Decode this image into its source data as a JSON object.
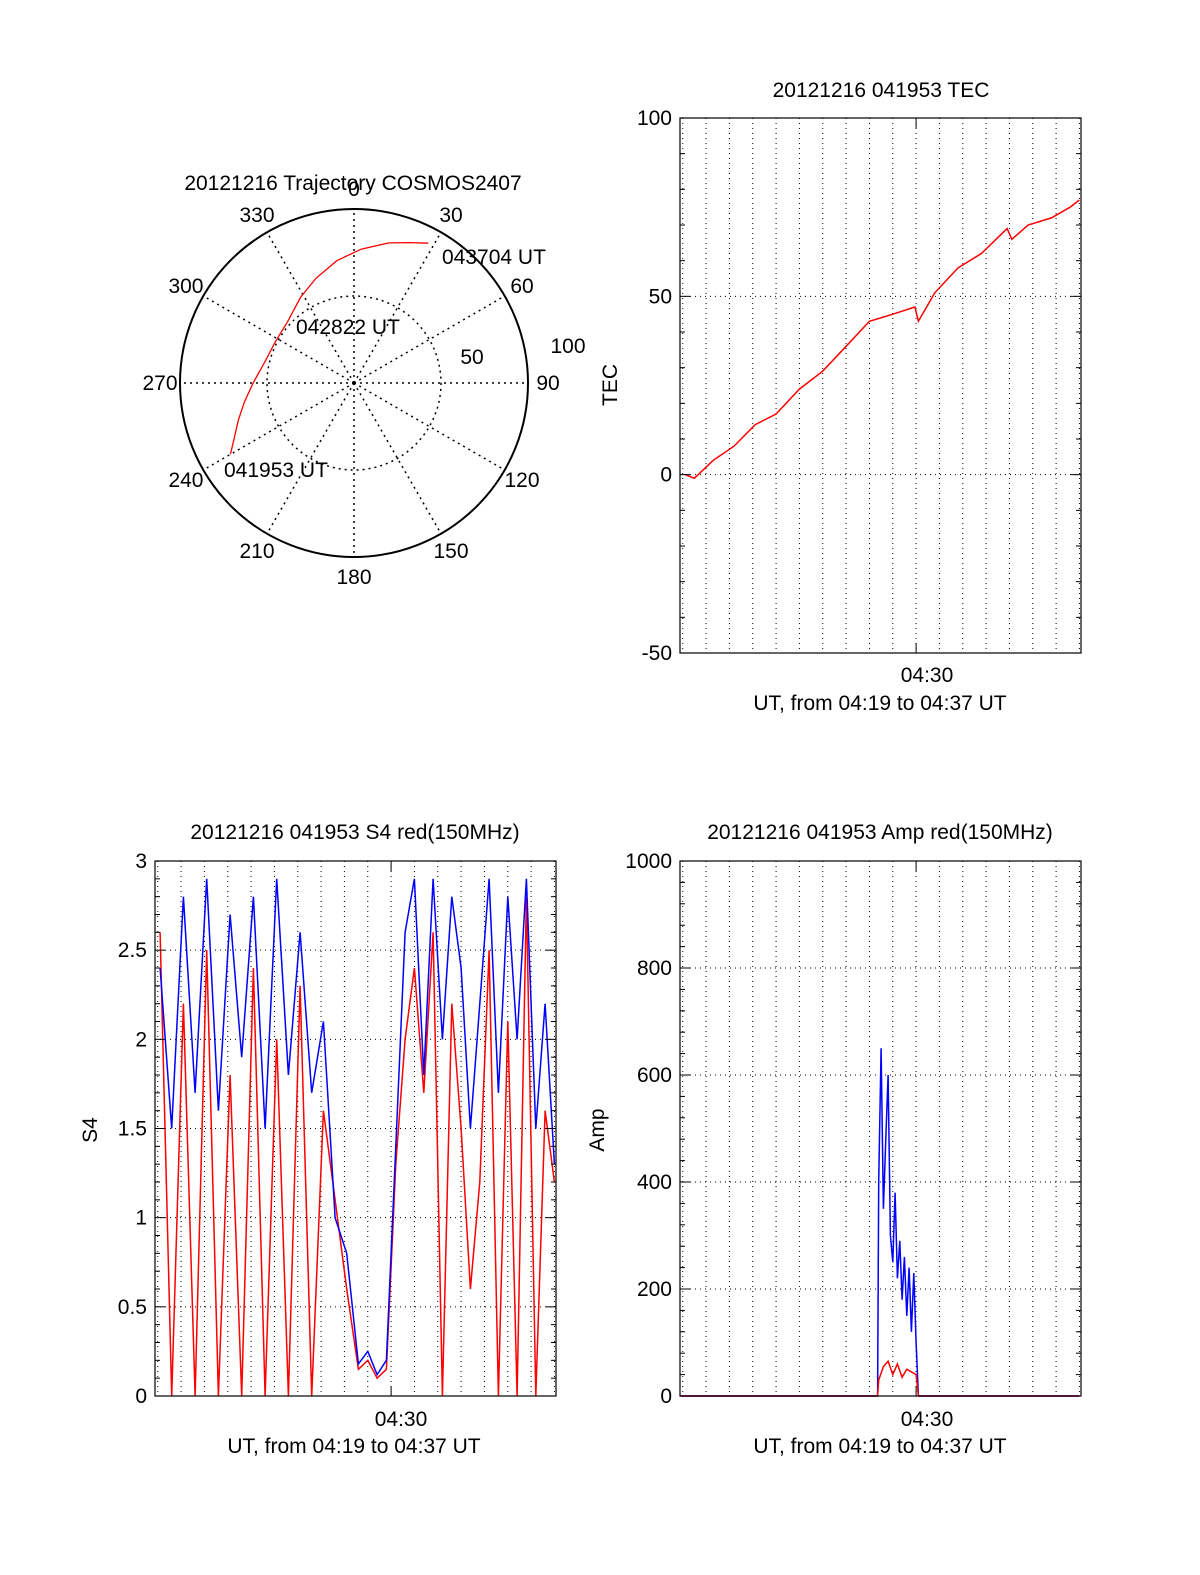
{
  "colors": {
    "background": "#ffffff",
    "axis": "#000000",
    "grid": "#000000",
    "red": "#ff0000",
    "blue": "#0000ff"
  },
  "chart_data": [
    {
      "id": "trajectory",
      "type": "polar",
      "title": "20121216 Trajectory COSMOS2407",
      "azimuth_labels": [
        "0",
        "30",
        "60",
        "90",
        "120",
        "150",
        "180",
        "210",
        "240",
        "270",
        "300",
        "330"
      ],
      "radial_ticks": [
        50,
        100
      ],
      "radial_labels": [
        "50",
        "100"
      ],
      "grid": true,
      "annotations": [
        "043704 UT",
        "042822 UT",
        "041953 UT"
      ],
      "series": [
        {
          "color": "#ff0000",
          "points": [
            {
              "az": 240,
              "r": 82
            },
            {
              "az": 245,
              "r": 76
            },
            {
              "az": 252,
              "r": 70
            },
            {
              "az": 260,
              "r": 64
            },
            {
              "az": 270,
              "r": 58
            },
            {
              "az": 282,
              "r": 53
            },
            {
              "az": 298,
              "r": 51
            },
            {
              "az": 313,
              "r": 52
            },
            {
              "az": 328,
              "r": 58
            },
            {
              "az": 340,
              "r": 64
            },
            {
              "az": 352,
              "r": 71
            },
            {
              "az": 3,
              "r": 77
            },
            {
              "az": 14,
              "r": 83
            },
            {
              "az": 22,
              "r": 87
            },
            {
              "az": 28,
              "r": 91
            }
          ]
        }
      ]
    },
    {
      "id": "tec",
      "type": "line",
      "title": "20121216 041953 TEC",
      "ylabel": "TEC",
      "xlabel": "UT, from 04:19 to 04:37 UT",
      "x_tick_label": "04:30",
      "x_range_min": [
        259.883,
        277.067
      ],
      "ylim": [
        -50,
        100
      ],
      "yticks": [
        -50,
        0,
        50,
        100
      ],
      "grid": true,
      "series": [
        {
          "color": "#ff0000",
          "x": [
            260.1,
            260.5,
            261.3,
            262.2,
            263.1,
            264.0,
            265.0,
            266.0,
            267.0,
            268.0,
            269.0,
            269.95,
            270.1,
            270.8,
            271.8,
            272.8,
            273.9,
            274.1,
            274.8,
            275.8,
            276.6,
            277.0
          ],
          "y": [
            0,
            -1,
            4,
            8,
            14,
            17,
            24,
            29,
            36,
            43,
            45,
            47,
            43,
            51,
            58,
            62,
            69,
            66,
            70,
            72,
            75,
            77
          ]
        }
      ]
    },
    {
      "id": "s4",
      "type": "line",
      "title": "20121216 041953 S4 red(150MHz)",
      "ylabel": "S4",
      "xlabel": "UT, from 04:19 to 04:37 UT",
      "x_tick_label": "04:30",
      "x_range_min": [
        259.883,
        277.067
      ],
      "ylim": [
        0,
        3
      ],
      "yticks": [
        0,
        0.5,
        1,
        1.5,
        2,
        2.5,
        3
      ],
      "grid": true,
      "series": [
        {
          "color": "#ff0000",
          "x": [
            260.1,
            260.6,
            261.1,
            261.6,
            262.1,
            262.6,
            263.1,
            263.6,
            264.1,
            264.6,
            265.1,
            265.6,
            266.1,
            266.6,
            267.1,
            267.6,
            268.1,
            268.6,
            269.0,
            269.4,
            269.8,
            270.2,
            270.6,
            271.0,
            271.4,
            271.8,
            272.2,
            272.6,
            273.0,
            273.4,
            273.8,
            274.2,
            274.6,
            275.0,
            275.4,
            275.8,
            276.2,
            276.6,
            277.0
          ],
          "y": [
            2.6,
            0.0,
            2.2,
            0.0,
            2.5,
            0.0,
            1.8,
            0.0,
            2.4,
            0.0,
            2.0,
            0.0,
            2.3,
            0.0,
            1.6,
            1.1,
            0.6,
            0.15,
            0.2,
            0.1,
            0.15,
            1.3,
            2.0,
            2.4,
            1.7,
            2.6,
            0.0,
            2.2,
            1.5,
            0.6,
            1.2,
            2.5,
            0.0,
            2.1,
            0.0,
            2.8,
            0.0,
            1.6,
            1.2
          ]
        },
        {
          "color": "#0000ff",
          "x": [
            260.1,
            260.6,
            261.1,
            261.6,
            262.1,
            262.6,
            263.1,
            263.6,
            264.1,
            264.6,
            265.1,
            265.6,
            266.1,
            266.6,
            267.1,
            267.6,
            268.1,
            268.6,
            269.0,
            269.4,
            269.8,
            270.2,
            270.6,
            271.0,
            271.4,
            271.8,
            272.2,
            272.6,
            273.0,
            273.4,
            273.8,
            274.2,
            274.6,
            275.0,
            275.4,
            275.8,
            276.2,
            276.6,
            277.0
          ],
          "y": [
            2.4,
            1.5,
            2.8,
            1.7,
            2.9,
            1.6,
            2.7,
            1.9,
            2.8,
            1.5,
            2.9,
            1.8,
            2.6,
            1.7,
            2.1,
            1.0,
            0.8,
            0.18,
            0.25,
            0.12,
            0.2,
            1.4,
            2.6,
            2.9,
            1.8,
            2.9,
            2.0,
            2.8,
            2.4,
            1.5,
            2.2,
            2.9,
            1.7,
            2.8,
            2.0,
            2.9,
            1.5,
            2.2,
            1.3
          ]
        }
      ]
    },
    {
      "id": "amp",
      "type": "line",
      "title": "20121216 041953 Amp red(150MHz)",
      "ylabel": "Amp",
      "xlabel": "UT, from 04:19 to 04:37 UT",
      "x_tick_label": "04:30",
      "x_range_min": [
        259.883,
        277.067
      ],
      "ylim": [
        0,
        1000
      ],
      "yticks": [
        0,
        200,
        400,
        600,
        800,
        1000
      ],
      "grid": true,
      "series": [
        {
          "color": "#0000ff",
          "x": [
            259.9,
            268.35,
            268.4,
            268.5,
            268.6,
            268.7,
            268.8,
            268.9,
            269.0,
            269.1,
            269.2,
            269.3,
            269.4,
            269.5,
            269.6,
            269.7,
            269.8,
            269.9,
            270.0,
            270.1,
            277.0
          ],
          "y": [
            0,
            0,
            400,
            650,
            350,
            480,
            600,
            300,
            250,
            380,
            220,
            290,
            180,
            260,
            150,
            240,
            120,
            230,
            100,
            0,
            0
          ]
        },
        {
          "color": "#ff0000",
          "x": [
            259.9,
            268.35,
            268.4,
            268.6,
            268.8,
            269.0,
            269.2,
            269.4,
            269.6,
            269.8,
            270.0,
            270.1,
            277.0
          ],
          "y": [
            0,
            0,
            30,
            55,
            65,
            40,
            60,
            35,
            50,
            45,
            40,
            0,
            0
          ]
        }
      ]
    }
  ]
}
